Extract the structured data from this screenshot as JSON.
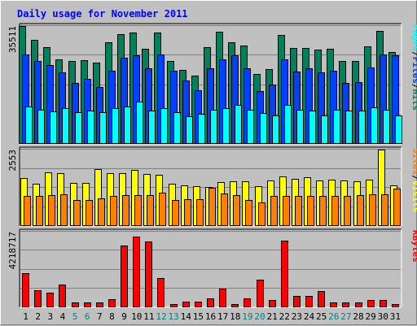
{
  "title": "Daily usage for November 2011",
  "colors": {
    "hits": "#00805c",
    "files": "#0040ff",
    "pages": "#00ffff",
    "visits": "#ffff00",
    "sites": "#ff8000",
    "kbytes": "#ff0000",
    "weekend_label": "#008080",
    "weekday_label": "#000000",
    "title": "#0000ff",
    "panel_bg": "#c0c0c0"
  },
  "chart_data": {
    "type": "bar",
    "title": "Daily usage for November 2011",
    "categories": [
      "1",
      "2",
      "3",
      "4",
      "5",
      "6",
      "7",
      "8",
      "9",
      "10",
      "11",
      "12",
      "13",
      "14",
      "15",
      "16",
      "17",
      "18",
      "19",
      "20",
      "21",
      "22",
      "23",
      "24",
      "25",
      "26",
      "27",
      "28",
      "29",
      "30",
      "31"
    ],
    "weekend_days": [
      "5",
      "6",
      "12",
      "13",
      "19",
      "20",
      "26",
      "27"
    ],
    "panels": [
      {
        "name": "hits-files-pages",
        "ymax_label": "35511",
        "ymax": 35511,
        "legend": [
          {
            "text": "Hits",
            "color": "#00805c"
          },
          {
            "text": "/",
            "color": "#000000"
          },
          {
            "text": "Files",
            "color": "#0040ff"
          },
          {
            "text": "/",
            "color": "#000000"
          },
          {
            "text": "Pages",
            "color": "#00ffff"
          }
        ],
        "series": [
          {
            "name": "Hits",
            "color": "#00805c",
            "values": [
              35511,
              31200,
              29200,
              25500,
              25000,
              25200,
              24300,
              30500,
              33000,
              33600,
              28600,
              33600,
              24800,
              22200,
              20500,
              29000,
              33800,
              30600,
              29600,
              21000,
              22400,
              32900,
              28900,
              28800,
              28400,
              28600,
              24900,
              25000,
              29400,
              34000,
              27600
            ]
          },
          {
            "name": "Files",
            "color": "#0040ff",
            "values": [
              27000,
              25000,
              23600,
              21400,
              18300,
              19500,
              17100,
              22000,
              25800,
              26600,
              22700,
              27000,
              21900,
              18900,
              16000,
              22700,
              25500,
              26600,
              22800,
              15700,
              17800,
              25400,
              21800,
              22700,
              21400,
              21900,
              18200,
              18500,
              22900,
              26900,
              26600
            ]
          },
          {
            "name": "Pages",
            "color": "#00ffff",
            "values": [
              11000,
              10000,
              9600,
              10500,
              9400,
              9800,
              9300,
              10500,
              11100,
              12600,
              9900,
              10500,
              9400,
              8100,
              8800,
              10200,
              10500,
              11500,
              10000,
              9100,
              8500,
              11500,
              10000,
              9800,
              8300,
              10100,
              9800,
              9800,
              10800,
              10200,
              8400
            ]
          }
        ]
      },
      {
        "name": "visits-sites",
        "ymax_label": "2553",
        "ymax": 2553,
        "legend": [
          {
            "text": "Visits",
            "color": "#ffff00"
          },
          {
            "text": "/",
            "color": "#000000"
          },
          {
            "text": "Sites",
            "color": "#ff8000"
          }
        ],
        "series": [
          {
            "name": "Visits",
            "color": "#ffff00",
            "values": [
              1580,
              1410,
              1790,
              1760,
              1440,
              1440,
              1890,
              1770,
              1770,
              1860,
              1720,
              1700,
              1400,
              1350,
              1320,
              1280,
              1450,
              1480,
              1470,
              1330,
              1500,
              1640,
              1560,
              1620,
              1500,
              1530,
              1500,
              1480,
              1540,
              2553,
              1350
            ]
          },
          {
            "name": "Sites",
            "color": "#ff8000",
            "values": [
              1000,
              1000,
              1010,
              1030,
              840,
              840,
              900,
              990,
              1010,
              1010,
              1010,
              1090,
              840,
              880,
              870,
              1250,
              1070,
              1010,
              860,
              780,
              980,
              1000,
              990,
              1000,
              990,
              1000,
              990,
              1010,
              1050,
              1050,
              1230
            ]
          }
        ]
      },
      {
        "name": "kbytes",
        "ymax_label": "4218717",
        "ymax": 4218717,
        "legend": [
          {
            "text": "KBytes",
            "color": "#ff0000"
          }
        ],
        "series": [
          {
            "name": "KBytes",
            "color": "#ff0000",
            "values": [
              1860000,
              920000,
              760000,
              1260000,
              240000,
              240000,
              240000,
              430000,
              3450000,
              3960000,
              3650000,
              1600000,
              150000,
              260000,
              260000,
              480000,
              1000000,
              150000,
              470000,
              1530000,
              380000,
              3720000,
              610000,
              590000,
              850000,
              240000,
              240000,
              240000,
              380000,
              360000,
              120000
            ]
          }
        ]
      }
    ]
  }
}
